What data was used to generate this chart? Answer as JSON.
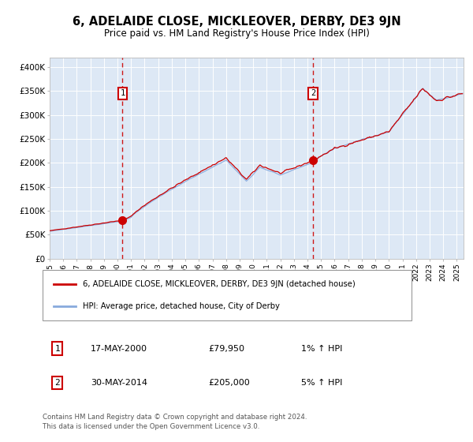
{
  "title": "6, ADELAIDE CLOSE, MICKLEOVER, DERBY, DE3 9JN",
  "subtitle": "Price paid vs. HM Land Registry's House Price Index (HPI)",
  "sale1_date": "17-MAY-2000",
  "sale1_price": 79950,
  "sale1_year": 2000.37,
  "sale2_date": "30-MAY-2014",
  "sale2_price": 205000,
  "sale2_year": 2014.41,
  "legend_line1": "6, ADELAIDE CLOSE, MICKLEOVER, DERBY, DE3 9JN (detached house)",
  "legend_line2": "HPI: Average price, detached house, City of Derby",
  "sale1_pct": "1%",
  "sale2_pct": "5%",
  "footer_line1": "Contains HM Land Registry data © Crown copyright and database right 2024.",
  "footer_line2": "This data is licensed under the Open Government Licence v3.0.",
  "line_color_red": "#cc0000",
  "line_color_blue": "#88aadd",
  "bg_color": "#dde8f5",
  "ylim": [
    0,
    420000
  ],
  "xlim_start": 1995.0,
  "xlim_end": 2025.5,
  "yticks": [
    0,
    50000,
    100000,
    150000,
    200000,
    250000,
    300000,
    350000,
    400000
  ],
  "ytick_labels": [
    "£0",
    "£50K",
    "£100K",
    "£150K",
    "£200K",
    "£250K",
    "£300K",
    "£350K",
    "£400K"
  ]
}
